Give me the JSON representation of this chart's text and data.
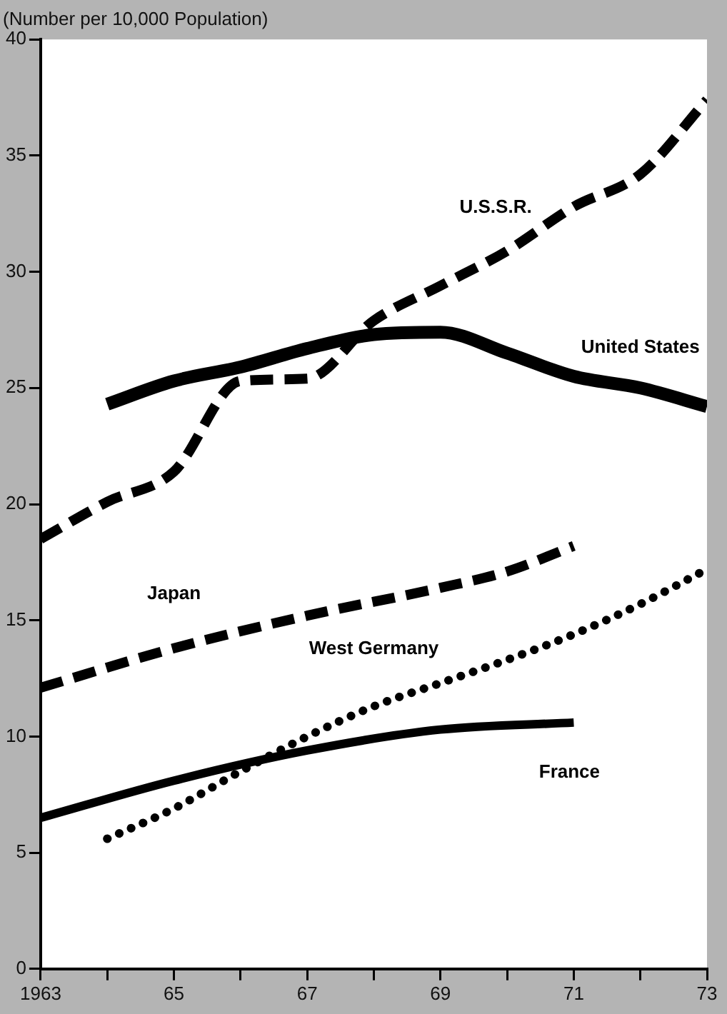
{
  "chart_data": {
    "type": "line",
    "ylabel": "(Number per 10,000 Population)",
    "xlim": [
      1963,
      1973
    ],
    "ylim": [
      0,
      40
    ],
    "xticks": [
      {
        "value": 1963,
        "label": "1963"
      },
      {
        "value": 1964,
        "label": null
      },
      {
        "value": 1965,
        "label": "65"
      },
      {
        "value": 1966,
        "label": null
      },
      {
        "value": 1967,
        "label": "67"
      },
      {
        "value": 1968,
        "label": null
      },
      {
        "value": 1969,
        "label": "69"
      },
      {
        "value": 1970,
        "label": null
      },
      {
        "value": 1971,
        "label": "71"
      },
      {
        "value": 1972,
        "label": null
      },
      {
        "value": 1973,
        "label": "73"
      }
    ],
    "yticks": [
      0,
      5,
      10,
      15,
      20,
      25,
      30,
      35,
      40
    ],
    "grid": false,
    "legend": false,
    "marker": "none",
    "series": [
      {
        "name": "U.S.S.R.",
        "color": "#000000",
        "line_style": "dashed",
        "x": [
          1963,
          1964,
          1965,
          1966,
          1967,
          1968,
          1969,
          1970,
          1971,
          1972,
          1973
        ],
        "values": [
          18.5,
          20.1,
          21.4,
          25.3,
          25.4,
          27.9,
          29.4,
          30.9,
          32.8,
          34.2,
          37.4
        ]
      },
      {
        "name": "United States",
        "color": "#000000",
        "line_style": "solid",
        "x": [
          1964,
          1965,
          1966,
          1967,
          1968,
          1969,
          1970,
          1971,
          1972,
          1973
        ],
        "values": [
          24.3,
          25.3,
          25.9,
          26.7,
          27.3,
          27.4,
          26.5,
          25.5,
          25.0,
          24.2
        ]
      },
      {
        "name": "Japan",
        "color": "#000000",
        "line_style": "dashed",
        "x": [
          1963,
          1965,
          1967,
          1969,
          1970,
          1971
        ],
        "values": [
          12.1,
          13.8,
          15.2,
          16.4,
          17.1,
          18.2
        ]
      },
      {
        "name": "West Germany",
        "color": "#000000",
        "line_style": "dotted",
        "x": [
          1964,
          1965,
          1966,
          1967,
          1968,
          1969,
          1970,
          1971,
          1972,
          1973
        ],
        "values": [
          5.6,
          6.9,
          8.5,
          10.0,
          11.3,
          12.3,
          13.3,
          14.4,
          15.7,
          17.2
        ]
      },
      {
        "name": "France",
        "color": "#000000",
        "line_style": "solid",
        "x": [
          1963,
          1965,
          1967,
          1969,
          1971
        ],
        "values": [
          6.5,
          8.1,
          9.4,
          10.3,
          10.6
        ]
      }
    ]
  }
}
